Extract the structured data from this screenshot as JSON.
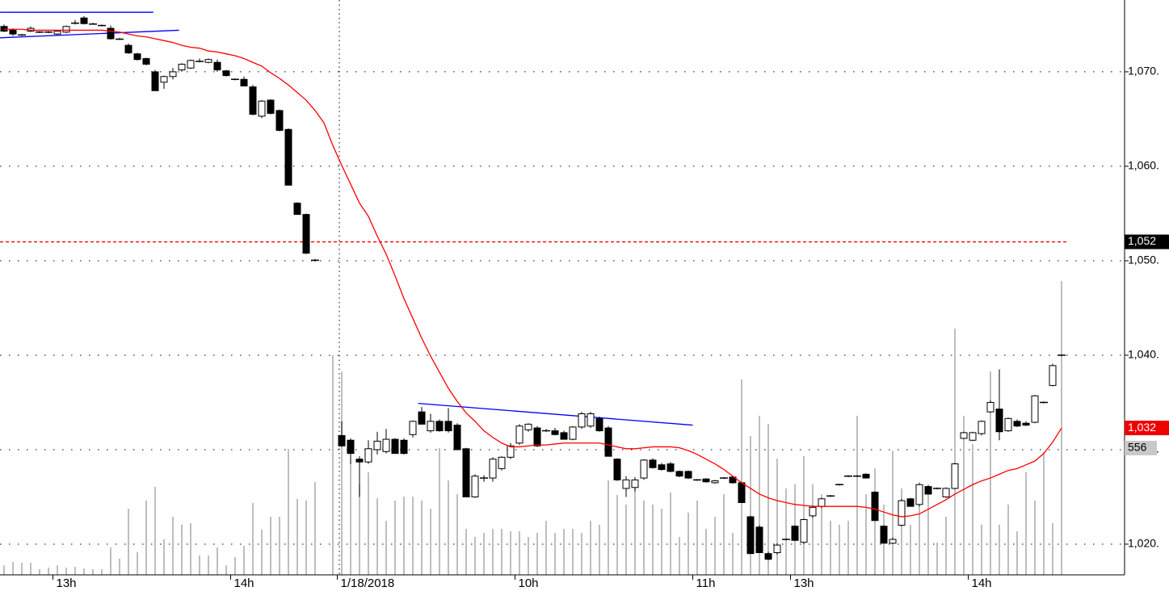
{
  "chart_data": {
    "type": "candlestick",
    "categories": [
      null,
      null,
      null,
      null,
      null,
      null,
      "13h",
      null,
      null,
      null,
      null,
      null,
      null,
      null,
      null,
      null,
      null,
      null,
      null,
      null,
      null,
      null,
      null,
      null,
      null,
      null,
      "14h",
      null,
      null,
      null,
      null,
      null,
      null,
      null,
      null,
      null,
      null,
      null,
      "1/18/2018",
      null,
      null,
      null,
      null,
      null,
      null,
      null,
      null,
      null,
      null,
      null,
      null,
      null,
      null,
      null,
      null,
      null,
      null,
      null,
      "10h",
      null,
      null,
      null,
      null,
      null,
      null,
      null,
      null,
      null,
      null,
      null,
      null,
      null,
      null,
      null,
      null,
      null,
      null,
      null,
      "11h",
      null,
      null,
      null,
      null,
      null,
      null,
      null,
      null,
      null,
      null,
      "13h",
      null,
      null,
      null,
      null,
      null,
      null,
      null,
      null,
      null,
      null,
      null,
      null,
      null,
      null,
      null,
      null,
      null,
      null,
      null,
      "14h",
      null,
      null,
      null,
      null,
      null,
      null,
      null,
      null,
      null,
      null
    ],
    "ohlc": [
      [
        1074.8,
        1075.0,
        1074.2,
        1074.3
      ],
      [
        1074.4,
        1074.6,
        1073.8,
        1074.0
      ],
      [
        1073.9,
        1074.0,
        1073.8,
        1073.9
      ],
      [
        1074.3,
        1074.8,
        1074.2,
        1074.6
      ],
      [
        1074.2,
        1074.3,
        1074.1,
        1074.2
      ],
      [
        1074.2,
        1074.3,
        1074.1,
        1074.2
      ],
      [
        1074.0,
        1074.4,
        1073.9,
        1074.3
      ],
      [
        1074.2,
        1074.9,
        1074.1,
        1074.8
      ],
      [
        1075.1,
        1075.5,
        1075.0,
        1075.2
      ],
      [
        1075.7,
        1075.9,
        1075.0,
        1075.1
      ],
      [
        1075.1,
        1075.2,
        1075.0,
        1075.0
      ],
      [
        1074.9,
        1075.0,
        1074.8,
        1074.9
      ],
      [
        1074.6,
        1074.9,
        1073.4,
        1073.5
      ],
      [
        1073.5,
        1073.6,
        1073.4,
        1073.4
      ],
      [
        1072.8,
        1073.0,
        1071.9,
        1072.0
      ],
      [
        1071.9,
        1072.0,
        1071.2,
        1071.3
      ],
      [
        1071.4,
        1071.5,
        1070.7,
        1070.8
      ],
      [
        1070.0,
        1070.2,
        1068.0,
        1068.0
      ],
      [
        1068.9,
        1069.6,
        1068.2,
        1069.5
      ],
      [
        1069.5,
        1070.4,
        1069.2,
        1070.0
      ],
      [
        1070.2,
        1070.9,
        1070.0,
        1070.8
      ],
      [
        1070.4,
        1071.3,
        1070.3,
        1071.2
      ],
      [
        1071.1,
        1071.4,
        1071.0,
        1071.1
      ],
      [
        1071.0,
        1071.4,
        1070.9,
        1071.3
      ],
      [
        1071.0,
        1071.3,
        1070.0,
        1070.2
      ],
      [
        1070.1,
        1070.2,
        1069.5,
        1069.6
      ],
      [
        1069.2,
        1069.3,
        1069.1,
        1069.2
      ],
      [
        1069.2,
        1069.5,
        1068.5,
        1068.5
      ],
      [
        1068.4,
        1068.6,
        1065.4,
        1065.5
      ],
      [
        1065.3,
        1067.0,
        1065.1,
        1066.9
      ],
      [
        1067.0,
        1067.1,
        1065.5,
        1065.6
      ],
      [
        1065.9,
        1066.0,
        1063.7,
        1063.8
      ],
      [
        1063.9,
        1064.0,
        1058.0,
        1058.0
      ],
      [
        1056.1,
        1056.2,
        1054.9,
        1054.9
      ],
      [
        1054.9,
        1055.0,
        1050.7,
        1050.8
      ],
      [
        1050.1,
        1050.2,
        1049.9,
        1050.0
      ],
      null,
      null,
      [
        1031.5,
        1033.0,
        1030.3,
        1030.4
      ],
      [
        1031.0,
        1031.2,
        1028.5,
        1029.6
      ],
      [
        1029.0,
        1029.3,
        1025.0,
        1028.7
      ],
      [
        1028.7,
        1031.0,
        1028.5,
        1030.1
      ],
      [
        1030.0,
        1031.9,
        1029.5,
        1030.9
      ],
      [
        1029.8,
        1032.2,
        1029.6,
        1031.1
      ],
      [
        1031.1,
        1031.2,
        1029.6,
        1029.6
      ],
      [
        1031.0,
        1031.2,
        1029.5,
        1029.6
      ],
      [
        1031.6,
        1033.1,
        1031.3,
        1033.0
      ],
      [
        1034.0,
        1034.5,
        1032.7,
        1032.7
      ],
      [
        1032.0,
        1033.8,
        1031.8,
        1033.0
      ],
      [
        1033.0,
        1033.2,
        1031.9,
        1032.0
      ],
      [
        1033.0,
        1034.4,
        1031.8,
        1032.0
      ],
      [
        1032.6,
        1032.8,
        1030.0,
        1030.0
      ],
      [
        1030.1,
        1030.2,
        1025.0,
        1025.0
      ],
      [
        1025.0,
        1027.4,
        1024.9,
        1027.2
      ],
      [
        1027.0,
        1027.3,
        1026.6,
        1027.0
      ],
      [
        1027.0,
        1029.2,
        1026.6,
        1029.0
      ],
      [
        1028.0,
        1029.3,
        1027.8,
        1029.2
      ],
      [
        1029.2,
        1030.7,
        1029.0,
        1030.4
      ],
      [
        1030.7,
        1032.7,
        1030.5,
        1032.5
      ],
      [
        1032.1,
        1032.8,
        1031.9,
        1032.7
      ],
      [
        1032.3,
        1032.5,
        1030.3,
        1030.4
      ],
      [
        1032.0,
        1032.2,
        1031.9,
        1032.0
      ],
      [
        1032.0,
        1032.3,
        1031.5,
        1031.6
      ],
      [
        1031.8,
        1032.0,
        1031.1,
        1031.1
      ],
      [
        1031.1,
        1032.5,
        1031.0,
        1032.4
      ],
      [
        1032.4,
        1034.0,
        1032.2,
        1033.8
      ],
      [
        1032.5,
        1034.0,
        1032.3,
        1033.8
      ],
      [
        1033.3,
        1033.5,
        1031.9,
        1032.0
      ],
      [
        1032.3,
        1032.5,
        1029.3,
        1029.3
      ],
      [
        1029.0,
        1029.1,
        1026.7,
        1026.8
      ],
      [
        1025.9,
        1027.2,
        1025.0,
        1026.8
      ],
      [
        1026.0,
        1027.1,
        1025.6,
        1026.8
      ],
      [
        1027.0,
        1029.0,
        1026.8,
        1028.9
      ],
      [
        1028.9,
        1029.1,
        1028.0,
        1028.1
      ],
      [
        1028.4,
        1028.6,
        1027.8,
        1027.9
      ],
      [
        1028.5,
        1028.7,
        1027.6,
        1027.7
      ],
      [
        1027.7,
        1027.8,
        1027.1,
        1027.2
      ],
      [
        1027.7,
        1027.8,
        1026.9,
        1027.0
      ],
      [
        1026.8,
        1026.9,
        1026.7,
        1026.8
      ],
      [
        1026.9,
        1027.0,
        1026.5,
        1026.6
      ],
      [
        1026.5,
        1026.8,
        1026.4,
        1026.7
      ],
      [
        1027.0,
        1027.1,
        1026.9,
        1027.0
      ],
      [
        1027.1,
        1027.2,
        1026.4,
        1026.5
      ],
      [
        1026.5,
        1026.6,
        1024.4,
        1024.4
      ],
      [
        1022.9,
        1023.0,
        1019.0,
        1019.0
      ],
      [
        1021.8,
        1022.0,
        1019.1,
        1019.1
      ],
      [
        1019.0,
        1019.2,
        1018.3,
        1018.4
      ],
      [
        1019.1,
        1020.1,
        1018.9,
        1019.9
      ],
      [
        1020.5,
        1020.6,
        1020.4,
        1020.5
      ],
      [
        1021.9,
        1022.0,
        1020.4,
        1020.4
      ],
      [
        1020.2,
        1022.7,
        1020.0,
        1022.6
      ],
      [
        1023.0,
        1024.1,
        1022.8,
        1023.9
      ],
      [
        1024.0,
        1024.9,
        1023.8,
        1024.8
      ],
      [
        1025.1,
        1025.2,
        1025.0,
        1025.1
      ],
      [
        1026.3,
        1026.4,
        1026.2,
        1026.3
      ],
      [
        1027.2,
        1027.3,
        1027.1,
        1027.2
      ],
      [
        1027.2,
        1027.3,
        1027.1,
        1027.2
      ],
      [
        1027.4,
        1027.5,
        1027.0,
        1027.0
      ],
      [
        1025.5,
        1025.6,
        1022.5,
        1022.5
      ],
      [
        1021.9,
        1022.0,
        1020.1,
        1020.1
      ],
      [
        1020.1,
        1020.7,
        1020.0,
        1020.5
      ],
      [
        1022.0,
        1024.8,
        1021.9,
        1024.6
      ],
      [
        1024.8,
        1024.9,
        1024.0,
        1024.0
      ],
      [
        1024.2,
        1026.5,
        1024.0,
        1026.3
      ],
      [
        1026.1,
        1026.2,
        1025.3,
        1025.3
      ],
      [
        1025.9,
        1026.0,
        1025.8,
        1025.9
      ],
      [
        1025.0,
        1026.0,
        1024.9,
        1025.9
      ],
      [
        1025.9,
        1028.6,
        1025.8,
        1028.5
      ],
      [
        1031.2,
        1031.9,
        1031.1,
        1031.8
      ],
      [
        1031.0,
        1031.9,
        1030.9,
        1031.8
      ],
      [
        1031.7,
        1033.1,
        1031.5,
        1033.0
      ],
      [
        1034.0,
        1035.2,
        1033.9,
        1035.0
      ],
      [
        1034.3,
        1038.5,
        1031.0,
        1031.9
      ],
      [
        1032.0,
        1033.4,
        1031.9,
        1033.3
      ],
      [
        1033.0,
        1033.2,
        1032.4,
        1032.5
      ],
      [
        1032.8,
        1033.0,
        1032.5,
        1032.6
      ],
      [
        1032.9,
        1035.8,
        1032.8,
        1035.7
      ],
      [
        1035.0,
        1035.1,
        1034.9,
        1035.0
      ],
      [
        1036.8,
        1039.1,
        1036.7,
        1038.9
      ],
      [
        1040.0,
        1040.1,
        1039.9,
        1040.0
      ]
    ],
    "up_color": "#ffffff",
    "down_color": "#000000",
    "ma": {
      "color": "#ff0000",
      "values": [
        1074.5,
        1074.5,
        1074.5,
        1074.4,
        1074.4,
        1074.4,
        1074.4,
        1074.4,
        1074.4,
        1074.4,
        1074.4,
        1074.4,
        1074.3,
        1074.2,
        1074.0,
        1073.8,
        1073.7,
        1073.5,
        1073.3,
        1073.1,
        1072.8,
        1072.6,
        1072.5,
        1072.2,
        1072.1,
        1071.9,
        1071.7,
        1071.4,
        1071.0,
        1070.6,
        1069.9,
        1069.3,
        1068.6,
        1067.8,
        1067.0,
        1065.9,
        1064.6,
        1062.2,
        1060.1,
        1058.1,
        1056.1,
        1054.7,
        1052.6,
        1050.7,
        1048.4,
        1046.0,
        1043.9,
        1041.8,
        1039.9,
        1038.2,
        1036.5,
        1035.1,
        1033.9,
        1033.0,
        1032.0,
        1031.3,
        1030.7,
        1030.3,
        1030.3,
        1030.4,
        1030.5,
        1030.5,
        1030.6,
        1030.7,
        1030.7,
        1030.7,
        1030.7,
        1030.7,
        1030.5,
        1030.3,
        1030.1,
        1030.1,
        1030.2,
        1030.3,
        1030.3,
        1030.3,
        1030.2,
        1029.9,
        1029.5,
        1029.0,
        1028.5,
        1027.9,
        1027.2,
        1026.5,
        1025.9,
        1025.3,
        1024.9,
        1024.6,
        1024.4,
        1024.2,
        1024.1,
        1024.0,
        1024.0,
        1024.0,
        1024.0,
        1024.0,
        1024.0,
        1023.9,
        1023.7,
        1023.4,
        1023.1,
        1022.9,
        1023.0,
        1023.2,
        1023.7,
        1024.2,
        1024.7,
        1025.3,
        1025.8,
        1026.3,
        1026.7,
        1027.0,
        1027.4,
        1027.8,
        1028.0,
        1028.4,
        1028.8,
        1029.6,
        1030.8,
        1032.3
      ]
    },
    "volume": {
      "color": "#a8a8a8",
      "axis": "y2",
      "values": [
        42,
        57,
        53,
        53,
        25,
        32,
        42,
        32,
        35,
        28,
        25,
        25,
        120,
        71,
        290,
        99,
        326,
        386,
        156,
        255,
        220,
        227,
        85,
        85,
        120,
        42,
        78,
        127,
        315,
        198,
        255,
        255,
        552,
        333,
        326,
        407,
        null,
        963,
        892,
        496,
        397,
        450,
        336,
        237,
        326,
        343,
        343,
        326,
        290,
        556,
        414,
        354,
        202,
        166,
        184,
        202,
        202,
        191,
        191,
        166,
        184,
        237,
        184,
        202,
        202,
        184,
        237,
        220,
        414,
        350,
        308,
        397,
        326,
        308,
        290,
        361,
        166,
        273,
        326,
        202,
        255,
        354,
        184,
        857,
        609,
        697,
        662,
        510,
        379,
        397,
        520,
        397,
        354,
        237,
        220,
        237,
        697,
        354,
        467,
        308,
        545,
        379,
        220,
        326,
        397,
        142,
        255,
        1080,
        697,
        573,
        220,
        892,
        220,
        308,
        191,
        450,
        326,
        538,
        227,
        1289
      ]
    },
    "ylim": [
      1016.75,
      1077.6
    ],
    "y2lim": [
      0,
      2521
    ],
    "yticks": [
      {
        "value": 1020,
        "label": "1,020."
      },
      {
        "value": 1030,
        "label": "1,030."
      },
      {
        "value": 1040,
        "label": "1,040."
      },
      {
        "value": 1050,
        "label": "1,050."
      },
      {
        "value": 1060,
        "label": "1,060."
      },
      {
        "value": 1070,
        "label": "1,070."
      }
    ],
    "grid": true,
    "lines": [
      {
        "color": "#0000ff",
        "x": [
          -0.45,
          16.8
        ],
        "y": [
          1076.3,
          1076.3
        ]
      },
      {
        "color": "#0000ff",
        "x": [
          -0.45,
          19.7
        ],
        "y": [
          1073.6,
          1074.4
        ]
      },
      {
        "color": "#0000ff",
        "x": [
          46.6,
          77.5
        ],
        "y": [
          1034.9,
          1032.6
        ]
      },
      {
        "color": "#ff0000",
        "dashed": true,
        "x": [
          -0.45,
          119.7
        ],
        "y": [
          1052,
          1052
        ]
      }
    ],
    "tags": [
      {
        "label": "1,052",
        "value": 1052,
        "color": "#000000",
        "text_color": "#ffffff"
      },
      {
        "label": "1,032",
        "value": 1032.3,
        "color": "#ee0000",
        "text_color": "#ffffff"
      },
      {
        "label": "556",
        "value": 556,
        "axis": "y2",
        "color": "#c8c8c8",
        "text_color": "#000000"
      }
    ]
  }
}
